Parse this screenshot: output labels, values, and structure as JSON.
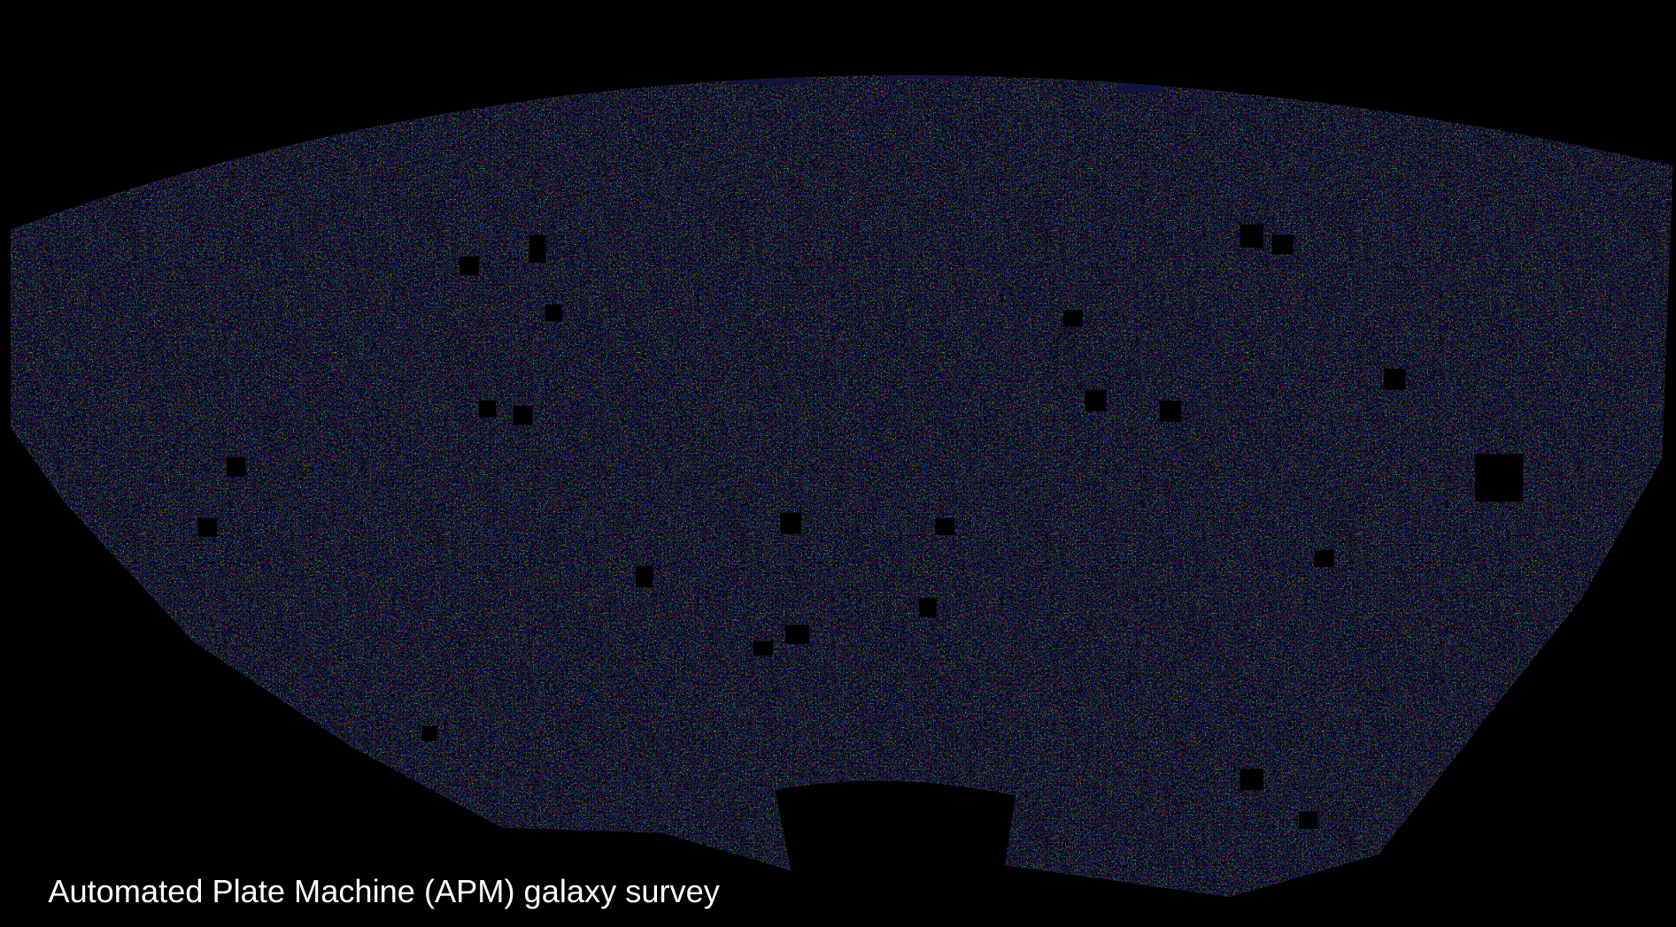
{
  "caption": "Automated Plate Machine (APM) galaxy survey"
}
